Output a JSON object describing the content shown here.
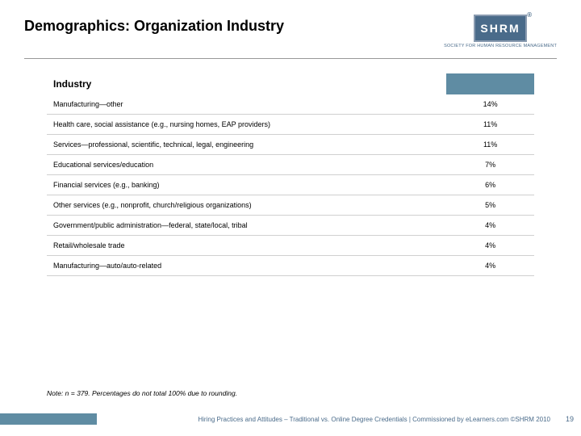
{
  "title": "Demographics: Organization Industry",
  "logo": {
    "text": "SHRM",
    "subtitle": "SOCIETY FOR HUMAN\nRESOURCE MANAGEMENT"
  },
  "table": {
    "header_label": "Industry",
    "columns": [
      "label",
      "value"
    ],
    "col_widths": [
      "82%",
      "18%"
    ],
    "header_bg_value": "#5f8ca3",
    "row_border_color": "#d0d0d0",
    "font_size": 9,
    "rows": [
      {
        "label": "Manufacturing—other",
        "value": "14%"
      },
      {
        "label": "Health care, social assistance (e.g., nursing homes, EAP providers)",
        "value": "11%"
      },
      {
        "label": "Services—professional, scientific, technical, legal, engineering",
        "value": "11%"
      },
      {
        "label": "Educational services/education",
        "value": "7%"
      },
      {
        "label": "Financial services (e.g., banking)",
        "value": "6%"
      },
      {
        "label": "Other services (e.g., nonprofit, church/religious organizations)",
        "value": "5%"
      },
      {
        "label": "Government/public administration—federal, state/local, tribal",
        "value": "4%"
      },
      {
        "label": "Retail/wholesale trade",
        "value": "4%"
      },
      {
        "label": "Manufacturing—auto/auto-related",
        "value": "4%"
      }
    ]
  },
  "note": "Note: n = 379. Percentages do not total 100% due to rounding.",
  "footer": {
    "text": "Hiring Practices and Attitudes – Traditional vs. Online Degree Credentials | Commissioned by eLearners.com ©SHRM 2010",
    "page": "19",
    "accent_color": "#5f8ca3"
  },
  "colors": {
    "title": "#000000",
    "logo_bg": "#4a6b8a",
    "logo_border": "#8a9bb0",
    "footer_text": "#4a6b8a"
  }
}
